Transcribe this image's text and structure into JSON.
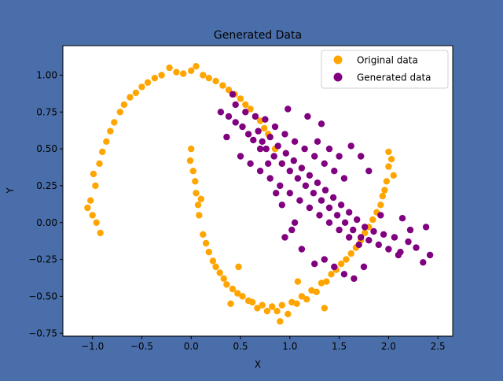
{
  "figure": {
    "background_color": "#4a6ea9",
    "axes_background_color": "#ffffff"
  },
  "chart_data": {
    "type": "scatter",
    "title": "Generated Data",
    "xlabel": "X",
    "ylabel": "Y",
    "xlim": [
      -1.3,
      2.65
    ],
    "ylim": [
      -0.77,
      1.2
    ],
    "xticks": [
      -1.0,
      -0.5,
      0.0,
      0.5,
      1.0,
      1.5,
      2.0,
      2.5
    ],
    "xtick_labels": [
      "−1.0",
      "−0.5",
      "0.0",
      "0.5",
      "1.0",
      "1.5",
      "2.0",
      "2.5"
    ],
    "yticks": [
      -0.75,
      -0.5,
      -0.25,
      0.0,
      0.25,
      0.5,
      0.75,
      1.0
    ],
    "ytick_labels": [
      "−0.75",
      "−0.50",
      "−0.25",
      "0.00",
      "0.25",
      "0.50",
      "0.75",
      "1.00"
    ],
    "grid": false,
    "legend_placement": "top-right",
    "series": [
      {
        "name": "Original data",
        "color": "#ffa500",
        "points": [
          [
            -1.0,
            0.05
          ],
          [
            -0.97,
            0.25
          ],
          [
            -0.93,
            0.4
          ],
          [
            -0.86,
            0.55
          ],
          [
            -0.78,
            0.68
          ],
          [
            -0.68,
            0.8
          ],
          [
            -0.56,
            0.88
          ],
          [
            -0.44,
            0.95
          ],
          [
            -0.3,
            1.0
          ],
          [
            -0.15,
            1.02
          ],
          [
            0.0,
            1.03
          ],
          [
            0.12,
            1.0
          ],
          [
            0.25,
            0.96
          ],
          [
            0.38,
            0.9
          ],
          [
            0.5,
            0.84
          ],
          [
            0.6,
            0.77
          ],
          [
            0.7,
            0.69
          ],
          [
            0.78,
            0.6
          ],
          [
            0.85,
            0.5
          ],
          [
            0.92,
            0.4
          ],
          [
            -1.02,
            0.15
          ],
          [
            -0.99,
            0.33
          ],
          [
            -0.9,
            0.48
          ],
          [
            -0.82,
            0.62
          ],
          [
            -0.72,
            0.75
          ],
          [
            -0.62,
            0.85
          ],
          [
            -0.5,
            0.92
          ],
          [
            -0.37,
            0.98
          ],
          [
            -0.22,
            1.05
          ],
          [
            -0.08,
            1.01
          ],
          [
            0.05,
            1.06
          ],
          [
            0.18,
            0.98
          ],
          [
            0.32,
            0.93
          ],
          [
            0.44,
            0.87
          ],
          [
            0.55,
            0.8
          ],
          [
            0.65,
            0.72
          ],
          [
            0.74,
            0.64
          ],
          [
            -0.96,
            0.0
          ],
          [
            -0.92,
            -0.07
          ],
          [
            -1.05,
            0.1
          ],
          [
            0.0,
            0.5
          ],
          [
            0.02,
            0.35
          ],
          [
            0.05,
            0.2
          ],
          [
            0.08,
            0.05
          ],
          [
            0.12,
            -0.08
          ],
          [
            0.18,
            -0.2
          ],
          [
            0.25,
            -0.3
          ],
          [
            0.33,
            -0.38
          ],
          [
            0.42,
            -0.45
          ],
          [
            0.52,
            -0.5
          ],
          [
            0.62,
            -0.54
          ],
          [
            0.72,
            -0.56
          ],
          [
            0.82,
            -0.57
          ],
          [
            0.92,
            -0.56
          ],
          [
            1.02,
            -0.54
          ],
          [
            1.12,
            -0.5
          ],
          [
            1.22,
            -0.46
          ],
          [
            1.32,
            -0.41
          ],
          [
            1.42,
            -0.35
          ],
          [
            1.52,
            -0.28
          ],
          [
            1.62,
            -0.21
          ],
          [
            1.72,
            -0.12
          ],
          [
            1.8,
            -0.03
          ],
          [
            1.88,
            0.07
          ],
          [
            1.94,
            0.18
          ],
          [
            1.98,
            0.28
          ],
          [
            2.0,
            0.38
          ],
          [
            2.0,
            0.48
          ],
          [
            -0.01,
            0.42
          ],
          [
            0.07,
            0.12
          ],
          [
            0.15,
            -0.14
          ],
          [
            0.29,
            -0.34
          ],
          [
            0.47,
            -0.48
          ],
          [
            0.67,
            -0.58
          ],
          [
            0.87,
            -0.6
          ],
          [
            1.07,
            -0.55
          ],
          [
            1.27,
            -0.47
          ],
          [
            1.47,
            -0.32
          ],
          [
            1.67,
            -0.17
          ],
          [
            1.84,
            0.02
          ],
          [
            1.96,
            0.22
          ],
          [
            2.03,
            0.43
          ],
          [
            2.05,
            0.32
          ],
          [
            0.04,
            0.28
          ],
          [
            0.22,
            -0.26
          ],
          [
            0.58,
            -0.53
          ],
          [
            0.98,
            -0.62
          ],
          [
            1.37,
            -0.4
          ],
          [
            1.76,
            -0.07
          ],
          [
            1.92,
            0.12
          ],
          [
            0.1,
            0.16
          ],
          [
            0.36,
            -0.42
          ],
          [
            0.77,
            -0.6
          ],
          [
            1.17,
            -0.52
          ],
          [
            1.57,
            -0.25
          ],
          [
            0.9,
            -0.67
          ],
          [
            1.35,
            -0.58
          ],
          [
            0.4,
            -0.55
          ],
          [
            0.48,
            -0.3
          ],
          [
            1.08,
            -0.4
          ]
        ]
      },
      {
        "name": "Generated data",
        "color": "#800080",
        "points": [
          [
            0.3,
            0.75
          ],
          [
            0.38,
            0.72
          ],
          [
            0.45,
            0.68
          ],
          [
            0.52,
            0.65
          ],
          [
            0.58,
            0.6
          ],
          [
            0.63,
            0.56
          ],
          [
            0.68,
            0.62
          ],
          [
            0.72,
            0.55
          ],
          [
            0.76,
            0.5
          ],
          [
            0.8,
            0.58
          ],
          [
            0.84,
            0.45
          ],
          [
            0.88,
            0.52
          ],
          [
            0.92,
            0.4
          ],
          [
            0.96,
            0.47
          ],
          [
            1.0,
            0.35
          ],
          [
            1.04,
            0.42
          ],
          [
            1.08,
            0.3
          ],
          [
            1.12,
            0.37
          ],
          [
            1.16,
            0.25
          ],
          [
            1.2,
            0.32
          ],
          [
            1.24,
            0.2
          ],
          [
            1.28,
            0.27
          ],
          [
            1.32,
            0.15
          ],
          [
            1.36,
            0.22
          ],
          [
            1.4,
            0.1
          ],
          [
            1.44,
            0.17
          ],
          [
            1.48,
            0.05
          ],
          [
            1.52,
            0.12
          ],
          [
            1.56,
            0.0
          ],
          [
            1.6,
            0.07
          ],
          [
            1.64,
            -0.05
          ],
          [
            1.68,
            0.02
          ],
          [
            1.72,
            -0.1
          ],
          [
            1.76,
            -0.03
          ],
          [
            1.8,
            -0.12
          ],
          [
            1.85,
            -0.06
          ],
          [
            1.9,
            -0.15
          ],
          [
            1.95,
            -0.08
          ],
          [
            2.0,
            -0.18
          ],
          [
            2.06,
            -0.1
          ],
          [
            2.12,
            -0.2
          ],
          [
            2.2,
            -0.13
          ],
          [
            2.28,
            -0.17
          ],
          [
            2.35,
            -0.27
          ],
          [
            2.42,
            -0.22
          ],
          [
            2.38,
            -0.03
          ],
          [
            2.14,
            0.03
          ],
          [
            2.22,
            -0.05
          ],
          [
            0.45,
            0.8
          ],
          [
            0.55,
            0.75
          ],
          [
            0.65,
            0.72
          ],
          [
            0.75,
            0.7
          ],
          [
            0.85,
            0.65
          ],
          [
            0.95,
            0.6
          ],
          [
            1.05,
            0.55
          ],
          [
            1.15,
            0.5
          ],
          [
            1.25,
            0.45
          ],
          [
            1.35,
            0.4
          ],
          [
            1.45,
            0.35
          ],
          [
            1.55,
            0.3
          ],
          [
            0.5,
            0.45
          ],
          [
            0.6,
            0.4
          ],
          [
            0.7,
            0.35
          ],
          [
            0.8,
            0.3
          ],
          [
            0.9,
            0.25
          ],
          [
            1.0,
            0.2
          ],
          [
            1.1,
            0.15
          ],
          [
            1.2,
            0.1
          ],
          [
            1.3,
            0.05
          ],
          [
            1.4,
            0.0
          ],
          [
            1.5,
            -0.05
          ],
          [
            1.6,
            -0.1
          ],
          [
            1.7,
            -0.15
          ],
          [
            1.25,
            -0.28
          ],
          [
            1.35,
            -0.25
          ],
          [
            1.45,
            -0.3
          ],
          [
            1.55,
            -0.35
          ],
          [
            1.65,
            -0.38
          ],
          [
            1.75,
            -0.3
          ],
          [
            0.36,
            0.58
          ],
          [
            0.42,
            0.87
          ],
          [
            0.98,
            0.77
          ],
          [
            1.18,
            0.72
          ],
          [
            1.32,
            0.67
          ],
          [
            1.62,
            0.52
          ],
          [
            1.72,
            0.45
          ],
          [
            1.8,
            0.35
          ],
          [
            0.92,
            0.12
          ],
          [
            1.02,
            -0.05
          ],
          [
            1.12,
            -0.18
          ],
          [
            0.95,
            -0.1
          ],
          [
            1.05,
            0.0
          ],
          [
            1.28,
            0.55
          ],
          [
            1.4,
            0.5
          ],
          [
            1.5,
            0.45
          ],
          [
            0.7,
            0.5
          ],
          [
            0.78,
            0.4
          ],
          [
            0.86,
            0.2
          ],
          [
            1.92,
            0.05
          ],
          [
            2.1,
            -0.22
          ]
        ]
      }
    ]
  }
}
